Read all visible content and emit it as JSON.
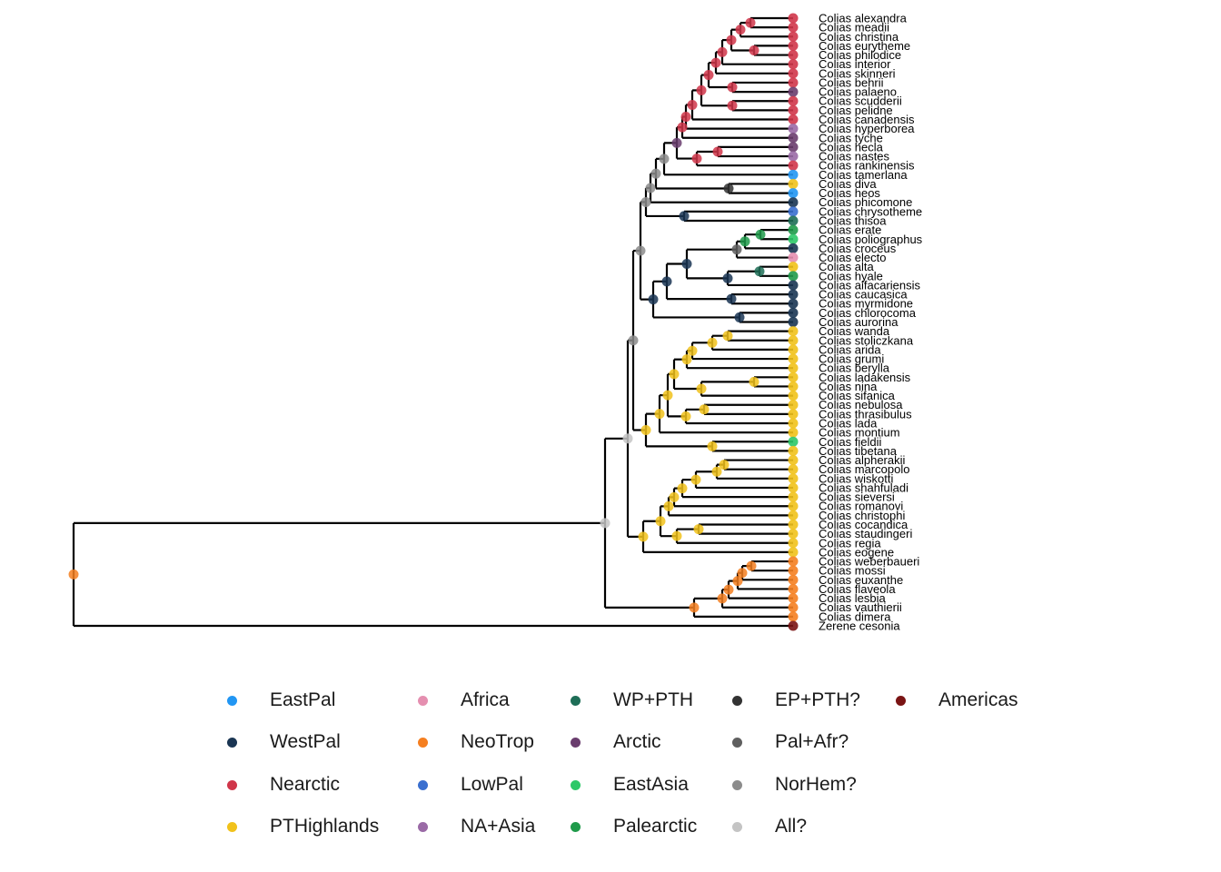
{
  "colors": {
    "EastPal": "#2196f3",
    "WestPal": "#1a3553",
    "Nearctic": "#d0364a",
    "PTHighlands": "#f1c21b",
    "Africa": "#e58fb0",
    "NeoTrop": "#f57f20",
    "LowPal": "#3a6fcf",
    "NA+Asia": "#9a6aa6",
    "WP+PTH": "#1e6e57",
    "Arctic": "#6a3d6e",
    "EastAsia": "#2ec868",
    "Palearctic": "#1f9a4a",
    "EP+PTH?": "#333333",
    "Pal+Afr?": "#5f5f5f",
    "NorHem?": "#8c8c8c",
    "All?": "#c4c4c4",
    "Americas": "#7a1414"
  },
  "tips": [
    {
      "label": "Colias alexandra",
      "region": "Nearctic"
    },
    {
      "label": "Colias meadii",
      "region": "Nearctic"
    },
    {
      "label": "Colias christina",
      "region": "Nearctic"
    },
    {
      "label": "Colias eurytheme",
      "region": "Nearctic"
    },
    {
      "label": "Colias philodice",
      "region": "Nearctic"
    },
    {
      "label": "Colias interior",
      "region": "Nearctic"
    },
    {
      "label": "Colias skinneri",
      "region": "Nearctic"
    },
    {
      "label": "Colias behrii",
      "region": "Nearctic"
    },
    {
      "label": "Colias palaeno",
      "region": "Arctic"
    },
    {
      "label": "Colias scudderii",
      "region": "Nearctic"
    },
    {
      "label": "Colias pelidne",
      "region": "Nearctic"
    },
    {
      "label": "Colias canadensis",
      "region": "Nearctic"
    },
    {
      "label": "Colias hyperborea",
      "region": "NA+Asia"
    },
    {
      "label": "Colias tyche",
      "region": "Arctic"
    },
    {
      "label": "Colias hecla",
      "region": "Arctic"
    },
    {
      "label": "Colias nastes",
      "region": "NA+Asia"
    },
    {
      "label": "Colias rankinensis",
      "region": "Nearctic"
    },
    {
      "label": "Colias tamerlana",
      "region": "EastPal"
    },
    {
      "label": "Colias diva",
      "region": "PTHighlands"
    },
    {
      "label": "Colias heos",
      "region": "EastPal"
    },
    {
      "label": "Colias phicomone",
      "region": "WestPal"
    },
    {
      "label": "Colias chrysotheme",
      "region": "LowPal"
    },
    {
      "label": "Colias thisoa",
      "region": "WP+PTH"
    },
    {
      "label": "Colias erate",
      "region": "Palearctic"
    },
    {
      "label": "Colias poliographus",
      "region": "EastAsia"
    },
    {
      "label": "Colias croceus",
      "region": "WestPal"
    },
    {
      "label": "Colias electo",
      "region": "Africa"
    },
    {
      "label": "Colias alta",
      "region": "PTHighlands"
    },
    {
      "label": "Colias hyale",
      "region": "Palearctic"
    },
    {
      "label": "Colias aifacariensis",
      "region": "WestPal"
    },
    {
      "label": "Colias caucasica",
      "region": "WestPal"
    },
    {
      "label": "Colias myrmidone",
      "region": "WestPal"
    },
    {
      "label": "Colias chlorocoma",
      "region": "WestPal"
    },
    {
      "label": "Colias aurorina",
      "region": "WestPal"
    },
    {
      "label": "Colias wanda",
      "region": "PTHighlands"
    },
    {
      "label": "Colias stoliczkana",
      "region": "PTHighlands"
    },
    {
      "label": "Colias arida",
      "region": "PTHighlands"
    },
    {
      "label": "Colias grumi",
      "region": "PTHighlands"
    },
    {
      "label": "Colias berylla",
      "region": "PTHighlands"
    },
    {
      "label": "Colias ladakensis",
      "region": "PTHighlands"
    },
    {
      "label": "Colias nina",
      "region": "PTHighlands"
    },
    {
      "label": "Colias sifanica",
      "region": "PTHighlands"
    },
    {
      "label": "Colias nebulosa",
      "region": "PTHighlands"
    },
    {
      "label": "Colias thrasibulus",
      "region": "PTHighlands"
    },
    {
      "label": "Colias lada",
      "region": "PTHighlands"
    },
    {
      "label": "Colias montium",
      "region": "PTHighlands"
    },
    {
      "label": "Colias fieldii",
      "region": "EastAsia"
    },
    {
      "label": "Colias tibetana",
      "region": "PTHighlands"
    },
    {
      "label": "Colias alpherakii",
      "region": "PTHighlands"
    },
    {
      "label": "Colias marcopolo",
      "region": "PTHighlands"
    },
    {
      "label": "Colias wiskotti",
      "region": "PTHighlands"
    },
    {
      "label": "Colias shahfuladi",
      "region": "PTHighlands"
    },
    {
      "label": "Colias sieversi",
      "region": "PTHighlands"
    },
    {
      "label": "Colias romanovi",
      "region": "PTHighlands"
    },
    {
      "label": "Colias christophi",
      "region": "PTHighlands"
    },
    {
      "label": "Colias cocandica",
      "region": "PTHighlands"
    },
    {
      "label": "Colias staudingeri",
      "region": "PTHighlands"
    },
    {
      "label": "Colias regia",
      "region": "PTHighlands"
    },
    {
      "label": "Colias eogene",
      "region": "PTHighlands"
    },
    {
      "label": "Colias weberbaueri",
      "region": "NeoTrop"
    },
    {
      "label": "Colias mossi",
      "region": "NeoTrop"
    },
    {
      "label": "Colias euxanthe",
      "region": "NeoTrop"
    },
    {
      "label": "Colias flaveola",
      "region": "NeoTrop"
    },
    {
      "label": "Colias lesbia",
      "region": "NeoTrop"
    },
    {
      "label": "Colias vauthierii",
      "region": "NeoTrop"
    },
    {
      "label": "Colias dimera",
      "region": "NeoTrop"
    },
    {
      "label": "Zerene cesonia",
      "region": "Americas"
    }
  ],
  "legend": {
    "columns": [
      [
        "EastPal",
        "WestPal",
        "Nearctic",
        "PTHighlands"
      ],
      [
        "Africa",
        "NeoTrop",
        "LowPal",
        "NA+Asia"
      ],
      [
        "WP+PTH",
        "Arctic",
        "EastAsia",
        "Palearctic"
      ],
      [
        "EP+PTH?",
        "Pal+Afr?",
        "NorHem?",
        "All?"
      ],
      [
        "Americas"
      ]
    ]
  }
}
